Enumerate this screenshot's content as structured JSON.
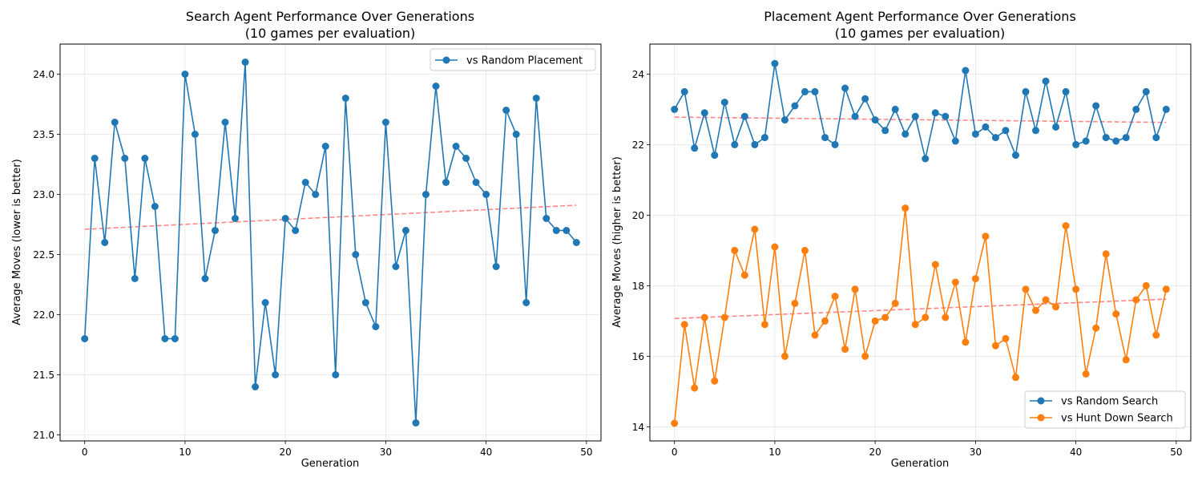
{
  "chart_data": [
    {
      "type": "line",
      "title": "Search Agent Performance Over Generations",
      "subtitle": "(10 games per evaluation)",
      "xlabel": "Generation",
      "ylabel": "Average Moves (lower is better)",
      "xlim": [
        -2.45,
        51.45
      ],
      "ylim": [
        20.95,
        24.25
      ],
      "xticks": [
        0,
        10,
        20,
        30,
        40,
        50
      ],
      "yticks": [
        21.0,
        21.5,
        22.0,
        22.5,
        23.0,
        23.5,
        24.0
      ],
      "ytick_labels": [
        "21.0",
        "21.5",
        "22.0",
        "22.5",
        "23.0",
        "23.5",
        "24.0"
      ],
      "grid": true,
      "legend_position": "top-right",
      "series": [
        {
          "name": "vs Random Placement",
          "color": "#1f77b4",
          "x": [
            0,
            1,
            2,
            3,
            4,
            5,
            6,
            7,
            8,
            9,
            10,
            11,
            12,
            13,
            14,
            15,
            16,
            17,
            18,
            19,
            20,
            21,
            22,
            23,
            24,
            25,
            26,
            27,
            28,
            29,
            30,
            31,
            32,
            33,
            34,
            35,
            36,
            37,
            38,
            39,
            40,
            41,
            42,
            43,
            44,
            45,
            46,
            47,
            48,
            49
          ],
          "y": [
            21.8,
            23.3,
            22.6,
            23.6,
            23.3,
            22.3,
            23.3,
            22.9,
            21.8,
            21.8,
            24.0,
            23.5,
            22.3,
            22.7,
            23.6,
            22.8,
            24.1,
            21.4,
            22.1,
            21.5,
            22.8,
            22.7,
            23.1,
            23.0,
            23.4,
            21.5,
            23.8,
            22.5,
            22.1,
            21.9,
            23.6,
            22.4,
            22.7,
            21.1,
            23.0,
            23.9,
            23.1,
            23.4,
            23.3,
            23.1,
            23.0,
            22.4,
            23.7,
            23.5,
            22.1,
            23.8,
            22.8,
            22.7,
            22.7,
            22.6
          ]
        }
      ],
      "trendlines": [
        {
          "series": "vs Random Placement",
          "color": "#ff7f7f",
          "x": [
            0,
            49
          ],
          "y": [
            22.71,
            22.91
          ]
        }
      ]
    },
    {
      "type": "line",
      "title": "Placement Agent Performance Over Generations",
      "subtitle": "(10 games per evaluation)",
      "xlabel": "Generation",
      "ylabel": "Average Moves (higher is better)",
      "xlim": [
        -2.45,
        51.45
      ],
      "ylim": [
        13.6,
        24.85
      ],
      "xticks": [
        0,
        10,
        20,
        30,
        40,
        50
      ],
      "yticks": [
        14,
        16,
        18,
        20,
        22,
        24
      ],
      "ytick_labels": [
        "14",
        "16",
        "18",
        "20",
        "22",
        "24"
      ],
      "grid": true,
      "legend_position": "bottom-right",
      "series": [
        {
          "name": "vs Random Search",
          "color": "#1f77b4",
          "x": [
            0,
            1,
            2,
            3,
            4,
            5,
            6,
            7,
            8,
            9,
            10,
            11,
            12,
            13,
            14,
            15,
            16,
            17,
            18,
            19,
            20,
            21,
            22,
            23,
            24,
            25,
            26,
            27,
            28,
            29,
            30,
            31,
            32,
            33,
            34,
            35,
            36,
            37,
            38,
            39,
            40,
            41,
            42,
            43,
            44,
            45,
            46,
            47,
            48,
            49
          ],
          "y": [
            23.0,
            23.5,
            21.9,
            22.9,
            21.7,
            23.2,
            22.0,
            22.8,
            22.0,
            22.2,
            24.3,
            22.7,
            23.1,
            23.5,
            23.5,
            22.2,
            22.0,
            23.6,
            22.8,
            23.3,
            22.7,
            22.4,
            23.0,
            22.3,
            22.8,
            21.6,
            22.9,
            22.8,
            22.1,
            24.1,
            22.3,
            22.5,
            22.2,
            22.4,
            21.7,
            23.5,
            22.4,
            23.8,
            22.5,
            23.5,
            22.0,
            22.1,
            23.1,
            22.2,
            22.1,
            22.2,
            23.0,
            23.5,
            22.2,
            23.0
          ]
        },
        {
          "name": "vs Hunt Down Search",
          "color": "#ff7f0e",
          "x": [
            0,
            1,
            2,
            3,
            4,
            5,
            6,
            7,
            8,
            9,
            10,
            11,
            12,
            13,
            14,
            15,
            16,
            17,
            18,
            19,
            20,
            21,
            22,
            23,
            24,
            25,
            26,
            27,
            28,
            29,
            30,
            31,
            32,
            33,
            34,
            35,
            36,
            37,
            38,
            39,
            40,
            41,
            42,
            43,
            44,
            45,
            46,
            47,
            48,
            49
          ],
          "y": [
            14.1,
            16.9,
            15.1,
            17.1,
            15.3,
            17.1,
            19.0,
            18.3,
            19.6,
            16.9,
            19.1,
            16.0,
            17.5,
            19.0,
            16.6,
            17.0,
            17.7,
            16.2,
            17.9,
            16.0,
            17.0,
            17.1,
            17.5,
            20.2,
            16.9,
            17.1,
            18.6,
            17.1,
            18.1,
            16.4,
            18.2,
            19.4,
            16.3,
            16.5,
            15.4,
            17.9,
            17.3,
            17.6,
            17.4,
            19.7,
            17.9,
            15.5,
            16.8,
            18.9,
            17.2,
            15.9,
            17.6,
            18.0,
            16.6,
            17.9
          ]
        }
      ],
      "trendlines": [
        {
          "series": "vs Random Search",
          "color": "#ff7f7f",
          "x": [
            0,
            49
          ],
          "y": [
            22.78,
            22.63
          ]
        },
        {
          "series": "vs Hunt Down Search",
          "color": "#ff7f7f",
          "x": [
            0,
            49
          ],
          "y": [
            17.07,
            17.62
          ]
        }
      ]
    }
  ]
}
